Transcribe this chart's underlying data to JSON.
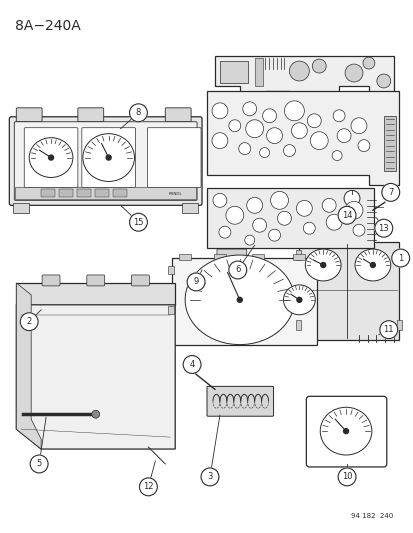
{
  "title": "8A−240A",
  "background_color": "#ffffff",
  "line_color": "#2a2a2a",
  "footnote": "94 182  240",
  "fig_width": 4.14,
  "fig_height": 5.33,
  "dpi": 100
}
